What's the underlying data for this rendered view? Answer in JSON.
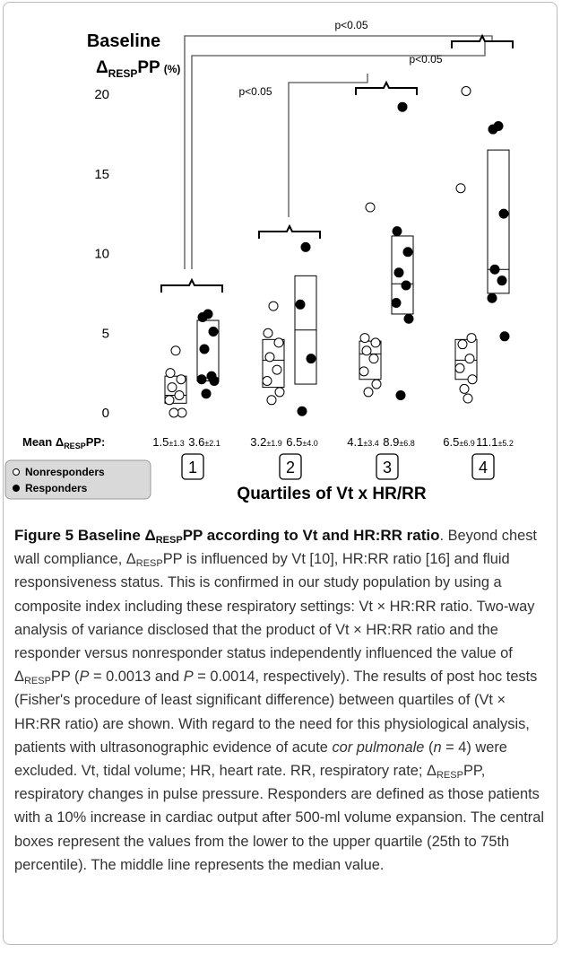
{
  "chart_data": {
    "type": "dot_box",
    "title": "Baseline",
    "y_label": [
      "Δ",
      "RESP",
      "PP",
      "(%)"
    ],
    "ylim": [
      0,
      20
    ],
    "yticks": [
      0,
      5,
      10,
      15,
      20
    ],
    "categories": [
      "1",
      "2",
      "3",
      "4"
    ],
    "x_label": "Quartiles of Vt x HR/RR",
    "series": [
      {
        "name": "Nonresponders",
        "color": "#ffffff",
        "values": [
          [
            3.9,
            2.5,
            2.1,
            1.6,
            1.1,
            0.8,
            0,
            0
          ],
          [
            6.7,
            5.0,
            4.4,
            3.5,
            2.7,
            2.0,
            1.3,
            0.8
          ],
          [
            12.9,
            4.7,
            4.4,
            3.9,
            3.4,
            2.6,
            1.8,
            1.3
          ],
          [
            20.2,
            14.1,
            4.7,
            4.3,
            3.4,
            2.8,
            2.1,
            1.5,
            0.9
          ]
        ],
        "boxes": [
          {
            "q1": 0.6,
            "median": 1.1,
            "q3": 2.3
          },
          {
            "q1": 1.6,
            "median": 3.3,
            "q3": 4.6
          },
          {
            "q1": 2.1,
            "median": 3.7,
            "q3": 4.5
          },
          {
            "q1": 2.1,
            "median": 3.3,
            "q3": 4.6
          }
        ]
      },
      {
        "name": "Responders",
        "color": "#000000",
        "values": [
          [
            6.2,
            6.0,
            5.1,
            4.0,
            2.3,
            2.1,
            2.0,
            1.2
          ],
          [
            10.4,
            6.8,
            3.4,
            0.1
          ],
          [
            19.2,
            11.4,
            10.1,
            8.8,
            8.0,
            6.9,
            5.9,
            1.1
          ],
          [
            18.0,
            17.8,
            12.5,
            9.0,
            8.3,
            7.2,
            4.8
          ]
        ],
        "boxes": [
          {
            "q1": 2.0,
            "median": 2.2,
            "q3": 5.8
          },
          {
            "q1": 1.8,
            "median": 5.2,
            "q3": 8.6
          },
          {
            "q1": 6.2,
            "median": 8.1,
            "q3": 11.1
          },
          {
            "q1": 7.5,
            "median": 9.0,
            "q3": 16.5
          }
        ]
      }
    ],
    "mean_title": [
      "Mean Δ",
      "RESP",
      "PP:"
    ],
    "mean_labels": [
      [
        [
          "1.5",
          "±1.3"
        ],
        [
          "3.6",
          "±2.1"
        ]
      ],
      [
        [
          "3.2",
          "±1.9"
        ],
        [
          "6.5",
          "±4.0"
        ]
      ],
      [
        [
          "4.1",
          "±3.4"
        ],
        [
          "8.9",
          "±6.8"
        ]
      ],
      [
        [
          "6.5",
          "±6.9"
        ],
        [
          "11.1",
          "±5.2"
        ]
      ]
    ],
    "annotations": [
      "p<0.05",
      "p<0.05",
      "p<0.05"
    ]
  },
  "caption": {
    "title": [
      "Figure 5 Baseline Δ",
      "RESP",
      "PP according to Vt and HR:RR ratio"
    ],
    "body": [
      "Beyond chest wall compliance, Δ",
      "RESP",
      "PP is influenced by Vt [10], HR:RR ratio [16] and fluid responsiveness status. This is confirmed in our study population by using a composite index including these respiratory settings: Vt × HR:RR ratio. Two-way analysis of variance disclosed that the product of Vt × HR:RR ratio and the responder versus nonresponder status independently influenced the value of Δ",
      "RESP",
      "PP (",
      "P",
      " = 0.0013 and ",
      "P",
      " = 0.0014, respectively). The results of post hoc tests (Fisher's procedure of least significant difference) between quartiles of (Vt × HR:RR ratio) are shown. With regard to the need for this physiological analysis, patients with ultrasonographic evidence of acute ",
      "cor pulmonale",
      " (",
      "n",
      " = 4) were excluded. Vt, tidal volume; HR, heart rate. RR, respiratory rate; Δ",
      "RESP",
      "PP, respiratory changes in pulse pressure. Responders are defined as those patients with a 10% increase in cardiac output after 500-ml volume expansion. The central boxes represent the values from the lower to the upper quartile (25th to 75th percentile). The middle line represents the median value."
    ]
  }
}
